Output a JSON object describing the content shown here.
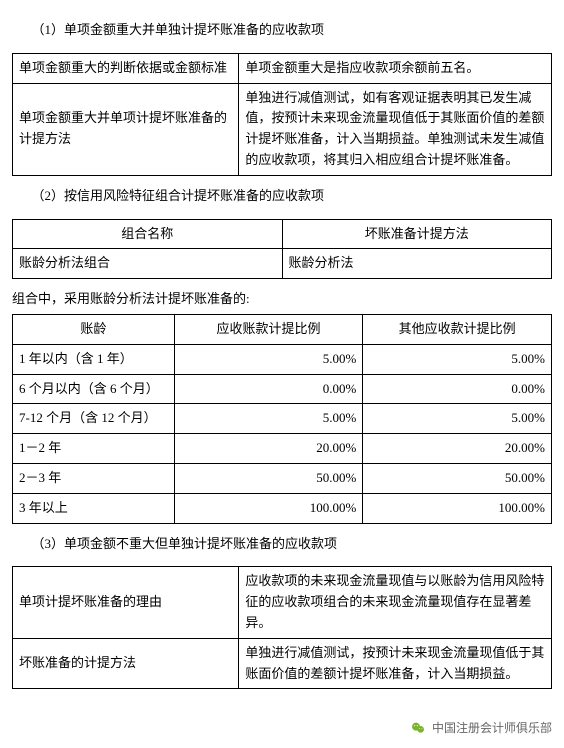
{
  "section1": {
    "title": "（1）单项金额重大并单独计提坏账准备的应收款项",
    "table": {
      "r1c1": "单项金额重大的判断依据或金额标准",
      "r1c2": "单项金额重大是指应收款项余额前五名。",
      "r2c1": "单项金额重大并单项计提坏账准备的计提方法",
      "r2c2": "单独进行减值测试，如有客观证据表明其已发生减值，按预计未来现金流量现值低于其账面价值的差额计提坏账准备，计入当期损益。单独测试未发生减值的应收款项，将其归入相应组合计提坏账准备。"
    }
  },
  "section2": {
    "title": "（2）按信用风险特征组合计提坏账准备的应收款项",
    "table1": {
      "h1": "组合名称",
      "h2": "坏账准备计提方法",
      "r1c1": "账龄分析法组合",
      "r1c2": "账龄分析法"
    },
    "note": "组合中，采用账龄分析法计提坏账准备的:",
    "aging": {
      "h1": "账龄",
      "h2": "应收账款计提比例",
      "h3": "其他应收款计提比例",
      "rows": [
        {
          "label": "1 年以内（含 1 年）",
          "v1": "5.00%",
          "v2": "5.00%"
        },
        {
          "label": "6 个月以内（含 6 个月）",
          "v1": "0.00%",
          "v2": "0.00%"
        },
        {
          "label": "7-12 个月（含 12 个月）",
          "v1": "5.00%",
          "v2": "5.00%"
        },
        {
          "label": "1－2 年",
          "v1": "20.00%",
          "v2": "20.00%"
        },
        {
          "label": "2－3 年",
          "v1": "50.00%",
          "v2": "50.00%"
        },
        {
          "label": "3 年以上",
          "v1": "100.00%",
          "v2": "100.00%"
        }
      ]
    }
  },
  "section3": {
    "title": "（3）单项金额不重大但单独计提坏账准备的应收款项",
    "table": {
      "r1c1": "单项计提坏账准备的理由",
      "r1c2": "应收款项的未来现金流量现值与以账龄为信用风险特征的应收款项组合的未来现金流量现值存在显著差异。",
      "r2c1": "坏账准备的计提方法",
      "r2c2": "单独进行减值测试，按预计未来现金流量现值低于其账面价值的差额计提坏账准备，计入当期损益。"
    }
  },
  "footer": {
    "text": "中国注册会计师俱乐部"
  }
}
